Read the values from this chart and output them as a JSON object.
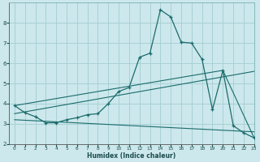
{
  "xlabel": "Humidex (Indice chaleur)",
  "background_color": "#cce8ec",
  "grid_color": "#a8d0d5",
  "line_color": "#1a6b6b",
  "xlim": [
    -0.5,
    23
  ],
  "ylim": [
    2.0,
    9.0
  ],
  "yticks": [
    2,
    3,
    4,
    5,
    6,
    7,
    8
  ],
  "xticks": [
    0,
    1,
    2,
    3,
    4,
    5,
    6,
    7,
    8,
    9,
    10,
    11,
    12,
    13,
    14,
    15,
    16,
    17,
    18,
    19,
    20,
    21,
    22,
    23
  ],
  "main_x": [
    0,
    1,
    2,
    3,
    4,
    5,
    6,
    7,
    8,
    9,
    10,
    11,
    12,
    13,
    14,
    15,
    16,
    17,
    18,
    19,
    20,
    21,
    22,
    23
  ],
  "main_y": [
    3.9,
    3.55,
    3.35,
    3.05,
    3.05,
    3.2,
    3.3,
    3.45,
    3.5,
    4.0,
    4.6,
    4.8,
    6.3,
    6.5,
    8.65,
    8.3,
    7.05,
    7.0,
    6.2,
    3.7,
    5.65,
    2.9,
    2.55,
    2.3
  ],
  "line1_x": [
    0,
    20,
    23
  ],
  "line1_y": [
    3.9,
    5.65,
    2.3
  ],
  "line2_x": [
    0,
    23
  ],
  "line2_y": [
    3.5,
    5.6
  ],
  "line3_x": [
    0,
    23
  ],
  "line3_y": [
    3.2,
    2.6
  ]
}
